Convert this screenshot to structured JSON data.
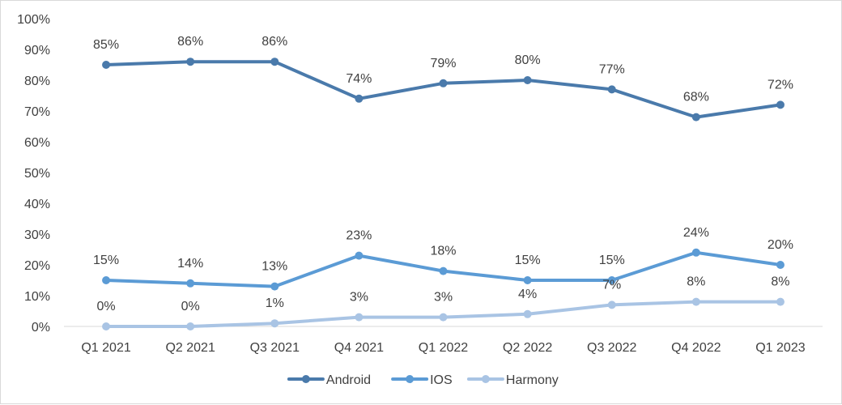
{
  "chart_data": {
    "type": "line",
    "categories": [
      "Q1 2021",
      "Q2 2021",
      "Q3 2021",
      "Q4 2021",
      "Q1 2022",
      "Q2 2022",
      "Q3 2022",
      "Q4 2022",
      "Q1 2023"
    ],
    "series": [
      {
        "name": "Android",
        "color": "#4a7aab",
        "values": [
          85,
          86,
          86,
          74,
          79,
          80,
          77,
          68,
          72
        ]
      },
      {
        "name": "IOS",
        "color": "#5b9bd5",
        "values": [
          15,
          14,
          13,
          23,
          18,
          15,
          15,
          24,
          20
        ]
      },
      {
        "name": "Harmony",
        "color": "#a9c4e4",
        "values": [
          0,
          0,
          1,
          3,
          3,
          4,
          7,
          8,
          8
        ]
      }
    ],
    "ylim": [
      0,
      100
    ],
    "yticks": [
      0,
      10,
      20,
      30,
      40,
      50,
      60,
      70,
      80,
      90,
      100
    ],
    "value_suffix": "%",
    "grid": false,
    "legend_position": "bottom"
  }
}
